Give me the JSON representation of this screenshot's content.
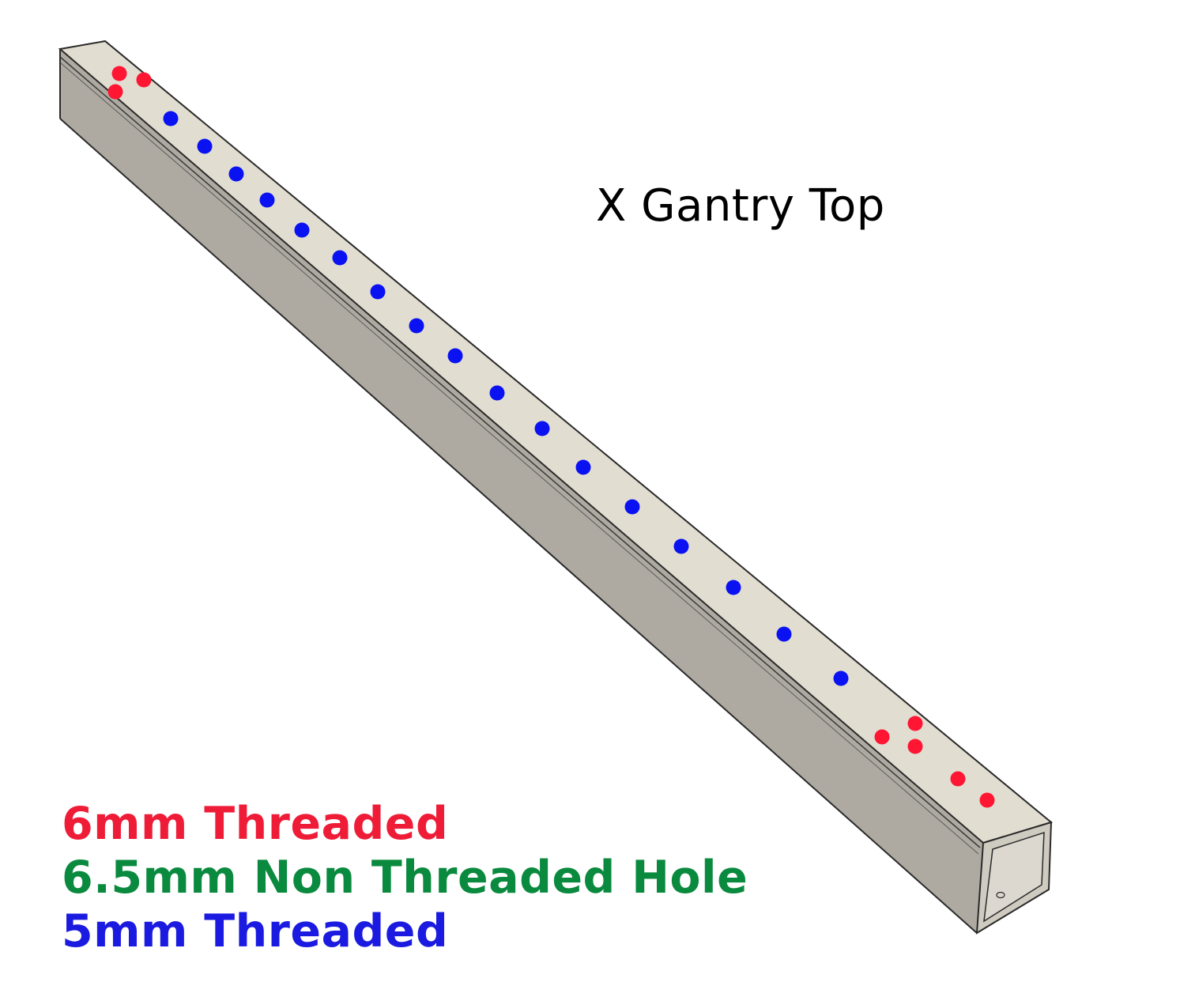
{
  "title": "X Gantry Top",
  "legend": [
    {
      "label": "6mm Threaded",
      "color": "#ef1c38"
    },
    {
      "label": "6.5mm Non Threaded Hole",
      "color": "#0a8a3e"
    },
    {
      "label": "5mm Threaded",
      "color": "#1a1ae0"
    }
  ],
  "colors": {
    "top_face": "#e2ddd1",
    "side_face": "#aeaaa1",
    "end_face": "#d6d2c8",
    "outline": "#2a2a2a",
    "hole_6mm": "#ff1633",
    "hole_5mm": "#0a12f2"
  }
}
